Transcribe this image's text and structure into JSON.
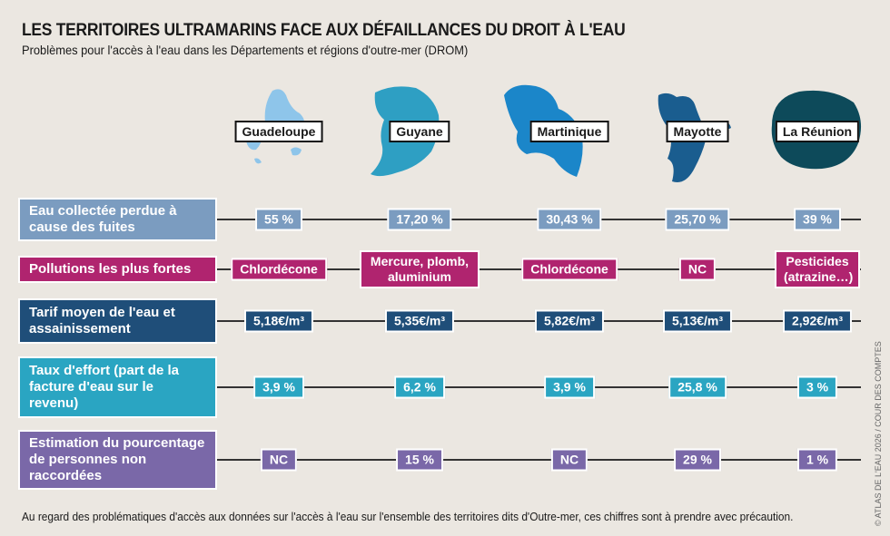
{
  "header": {
    "title": "LES TERRITOIRES ULTRAMARINS FACE AUX DÉFAILLANCES DU DROIT À L'EAU",
    "subtitle": "Problèmes pour l'accès à l'eau dans les Départements et régions d'outre-mer (DROM)"
  },
  "territories": [
    {
      "name": "Guadeloupe",
      "color": "#8ec5ea"
    },
    {
      "name": "Guyane",
      "color": "#2e9fc3"
    },
    {
      "name": "Martinique",
      "color": "#1b86c9"
    },
    {
      "name": "Mayotte",
      "color": "#1a5d8f"
    },
    {
      "name": "La Réunion",
      "color": "#0d4a5a"
    }
  ],
  "rows": [
    {
      "label": "Eau collectée perdue à cause des fuites",
      "color": "#7b9cc0",
      "values": [
        "55 %",
        "17,20 %",
        "30,43 %",
        "25,70 %",
        "39 %"
      ]
    },
    {
      "label": "Pollutions les plus fortes",
      "color": "#b0246f",
      "values": [
        "Chlordécone",
        "Mercure, plomb, aluminium",
        "Chlordécone",
        "NC",
        "Pesticides (atrazine…)"
      ]
    },
    {
      "label": "Tarif moyen de l'eau et assainissement",
      "color": "#1f4e79",
      "values": [
        "5,18€/m³",
        "5,35€/m³",
        "5,82€/m³",
        "5,13€/m³",
        "2,92€/m³"
      ]
    },
    {
      "label": "Taux d'effort (part de la facture d'eau sur le revenu)",
      "color": "#2aa5c2",
      "values": [
        "3,9 %",
        "6,2 %",
        "3,9 %",
        "25,8 %",
        "3 %"
      ]
    },
    {
      "label": "Estimation du pourcentage de personnes non raccordées",
      "color": "#7a68a8",
      "values": [
        "NC",
        "15 %",
        "NC",
        "29 %",
        "1 %"
      ]
    }
  ],
  "footnote": "Au regard des problématiques d'accès aux données sur l'accès à l'eau sur l'ensemble des territoires dits d'Outre-mer, ces chiffres sont à prendre avec précaution.",
  "credit": "© ATLAS DE L'EAU 2026 / COUR DES COMPTES"
}
